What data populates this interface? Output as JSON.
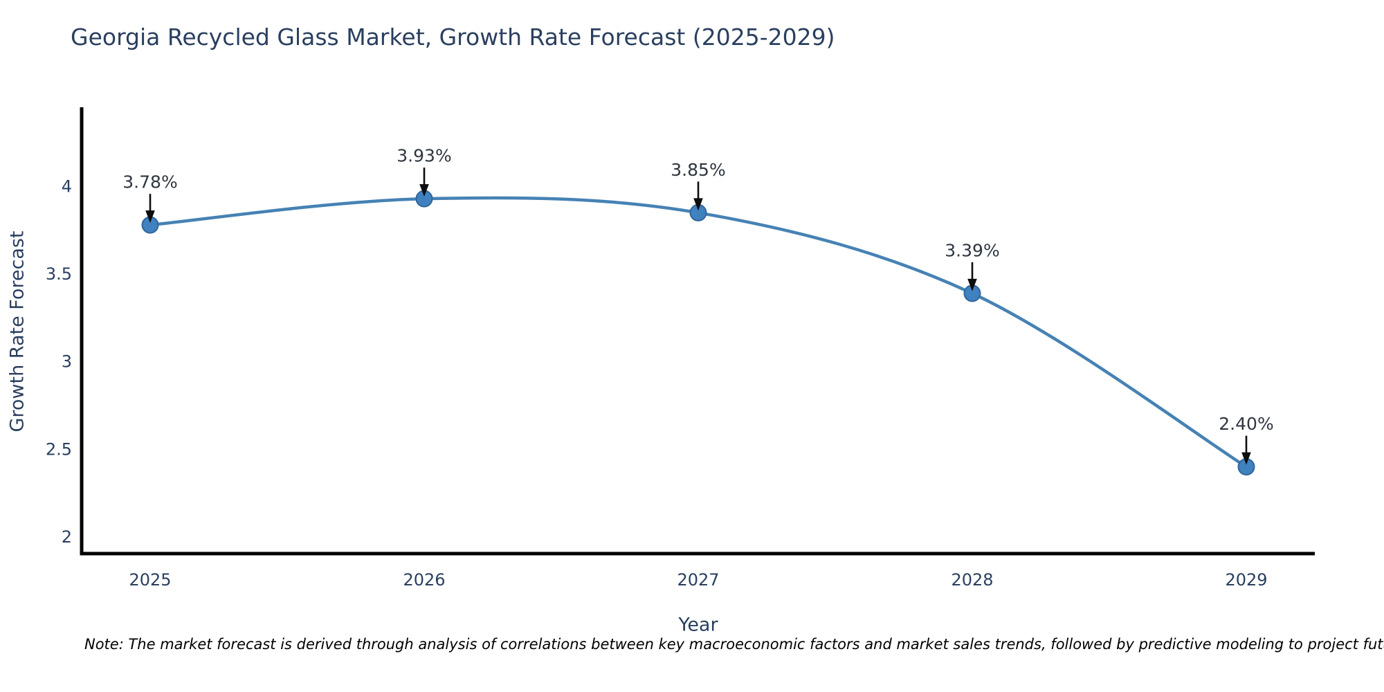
{
  "note": "Note: The market forecast is derived through analysis of correlations between key macroeconomic factors and market sales trends, followed by predictive modeling to project future sales",
  "colors": {
    "title_text": "#2a3f5f",
    "tick_text": "#2a3f5f",
    "axis_line": "#000000",
    "line": "#4682b4",
    "marker_fill": "#4081c0",
    "marker_edge": "#31669b",
    "annotation_text": "#2f3640",
    "arrow": "#0d0d0d",
    "note_text": "#000000",
    "background": "#ffffff"
  },
  "chart_data": {
    "type": "line",
    "title": "Georgia Recycled Glass Market, Growth Rate Forecast (2025-2029)",
    "xlabel": "Year",
    "ylabel": "Growth Rate Forecast",
    "x": [
      2025,
      2026,
      2027,
      2028,
      2029
    ],
    "y": [
      3.78,
      3.93,
      3.85,
      3.39,
      2.4
    ],
    "point_labels": [
      "3.78%",
      "3.93%",
      "3.85%",
      "3.39%",
      "2.40%"
    ],
    "xtick_labels": [
      "2025",
      "2026",
      "2027",
      "2028",
      "2029"
    ],
    "yticks": [
      2,
      2.5,
      3,
      3.5,
      4
    ],
    "ytick_labels": [
      "2",
      "2.5",
      "3",
      "3.5",
      "4"
    ],
    "xlim": [
      2024.75,
      2029.25
    ],
    "ylim": [
      1.905,
      4.44
    ],
    "line_shape": "spline",
    "grid": false,
    "legend": "none"
  }
}
